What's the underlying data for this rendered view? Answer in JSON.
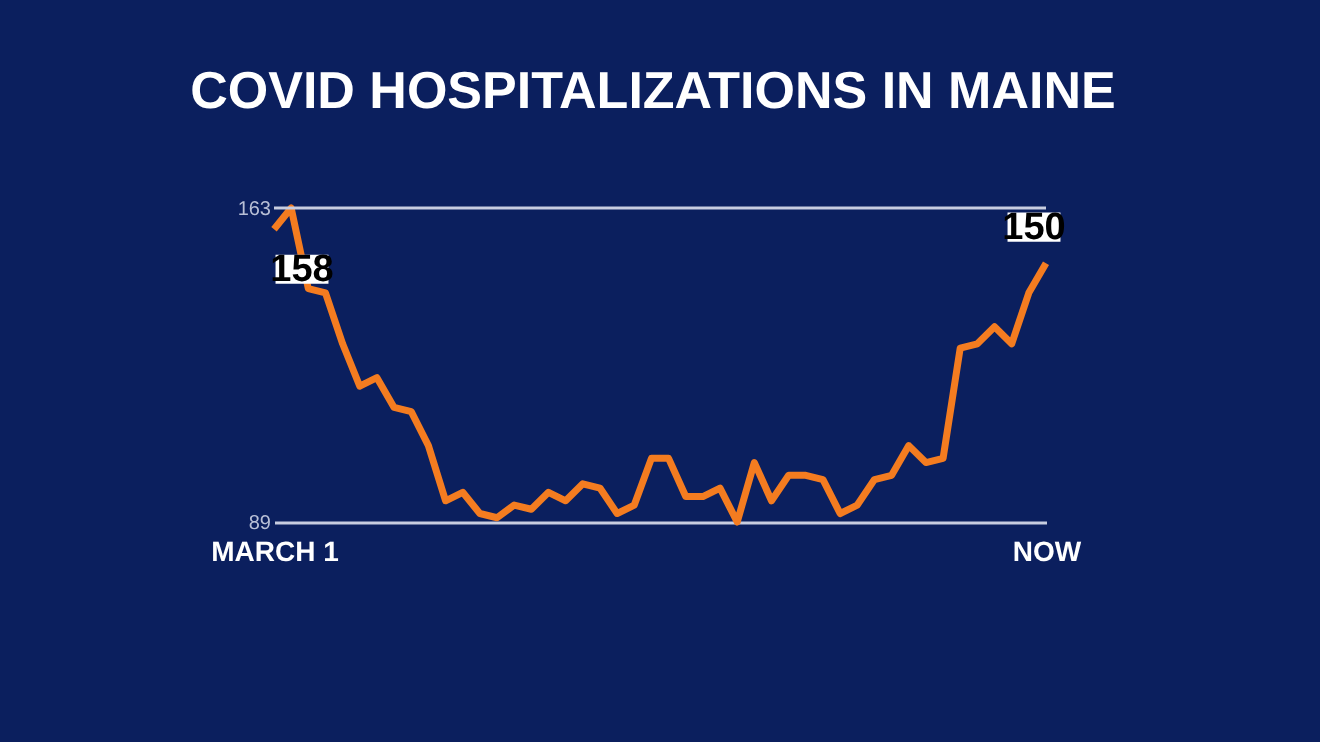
{
  "chart_data": {
    "type": "line",
    "title": "COVID HOSPITALIZATIONS IN MAINE",
    "categories": [
      "MARCH 1",
      null,
      null,
      null,
      null,
      null,
      null,
      null,
      null,
      null,
      null,
      null,
      null,
      null,
      null,
      null,
      null,
      null,
      null,
      null,
      null,
      null,
      null,
      null,
      null,
      null,
      null,
      null,
      null,
      null,
      null,
      null,
      null,
      null,
      null,
      null,
      null,
      null,
      null,
      null,
      null,
      null,
      null,
      null,
      null,
      "NOW"
    ],
    "series": [
      {
        "color": "#f47c20",
        "values": [
          158,
          163,
          144,
          143,
          131,
          121,
          123,
          116,
          115,
          107,
          94,
          96,
          91,
          90,
          93,
          92,
          96,
          94,
          98,
          97,
          91,
          93,
          104,
          104,
          95,
          95,
          97,
          89,
          103,
          94,
          100,
          100,
          99,
          91,
          93,
          99,
          100,
          107,
          103,
          104,
          130,
          131,
          135,
          131,
          143,
          150
        ],
        "value_labels": [
          "158",
          null,
          null,
          null,
          null,
          null,
          null,
          null,
          null,
          null,
          null,
          null,
          null,
          null,
          null,
          null,
          null,
          null,
          null,
          null,
          null,
          null,
          null,
          null,
          null,
          null,
          null,
          null,
          null,
          null,
          null,
          null,
          null,
          null,
          null,
          null,
          null,
          null,
          null,
          null,
          null,
          null,
          null,
          null,
          null,
          "150"
        ]
      }
    ],
    "ylim": [
      89,
      163
    ],
    "yticks": [
      89,
      163
    ],
    "ref_lines": [
      {
        "axis": "y",
        "value": 163,
        "color": "#c8cde0"
      }
    ],
    "marker": "none",
    "line_style": "solid"
  }
}
